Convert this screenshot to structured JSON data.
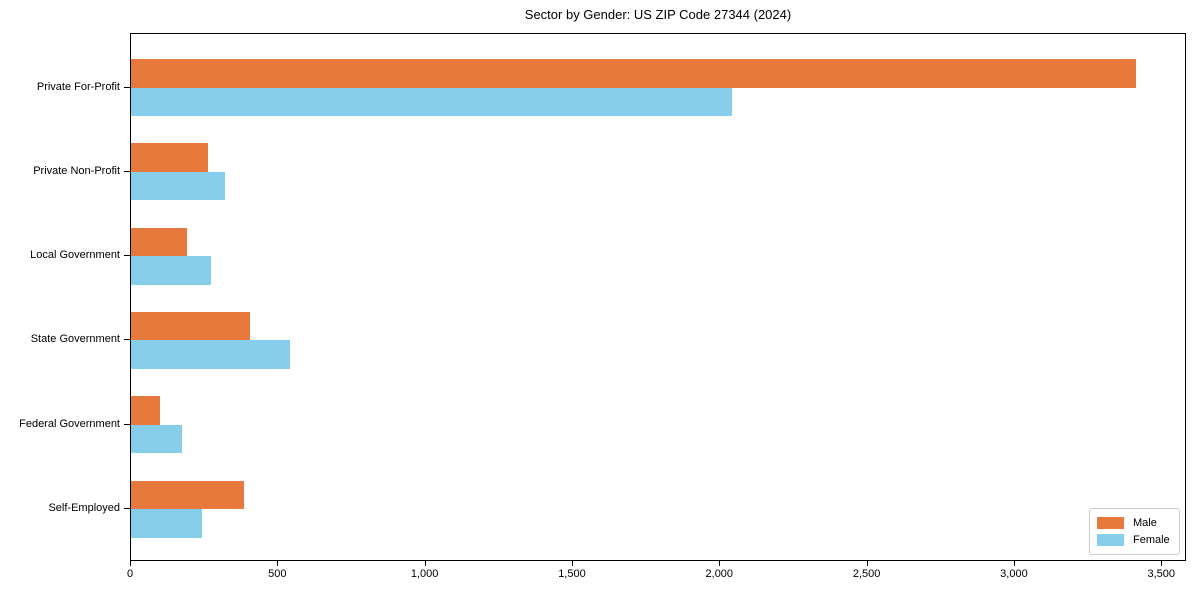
{
  "chart_data": {
    "type": "bar",
    "orientation": "horizontal",
    "title": "Sector by Gender: US ZIP Code 27344 (2024)",
    "categories": [
      "Private For-Profit",
      "Private Non-Profit",
      "Local Government",
      "State Government",
      "Federal Government",
      "Self-Employed"
    ],
    "series": [
      {
        "name": "Male",
        "color": "#E8793D",
        "values": [
          3410,
          260,
          190,
          405,
          100,
          385
        ]
      },
      {
        "name": "Female",
        "color": "#87CEEB",
        "values": [
          2040,
          320,
          272,
          540,
          172,
          242
        ]
      }
    ],
    "xlabel": "",
    "ylabel": "",
    "xlim": [
      0,
      3584
    ],
    "x_ticks": [
      0,
      500,
      1000,
      1500,
      2000,
      2500,
      3000,
      3500
    ],
    "x_tick_labels": [
      "0",
      "500",
      "1,000",
      "1,500",
      "2,000",
      "2,500",
      "3,000",
      "3,500"
    ],
    "grid": false,
    "legend": {
      "position": "lower right"
    },
    "colors": {
      "spine": "#000000",
      "text": "#000000",
      "legend_border": "#cccccc"
    }
  }
}
